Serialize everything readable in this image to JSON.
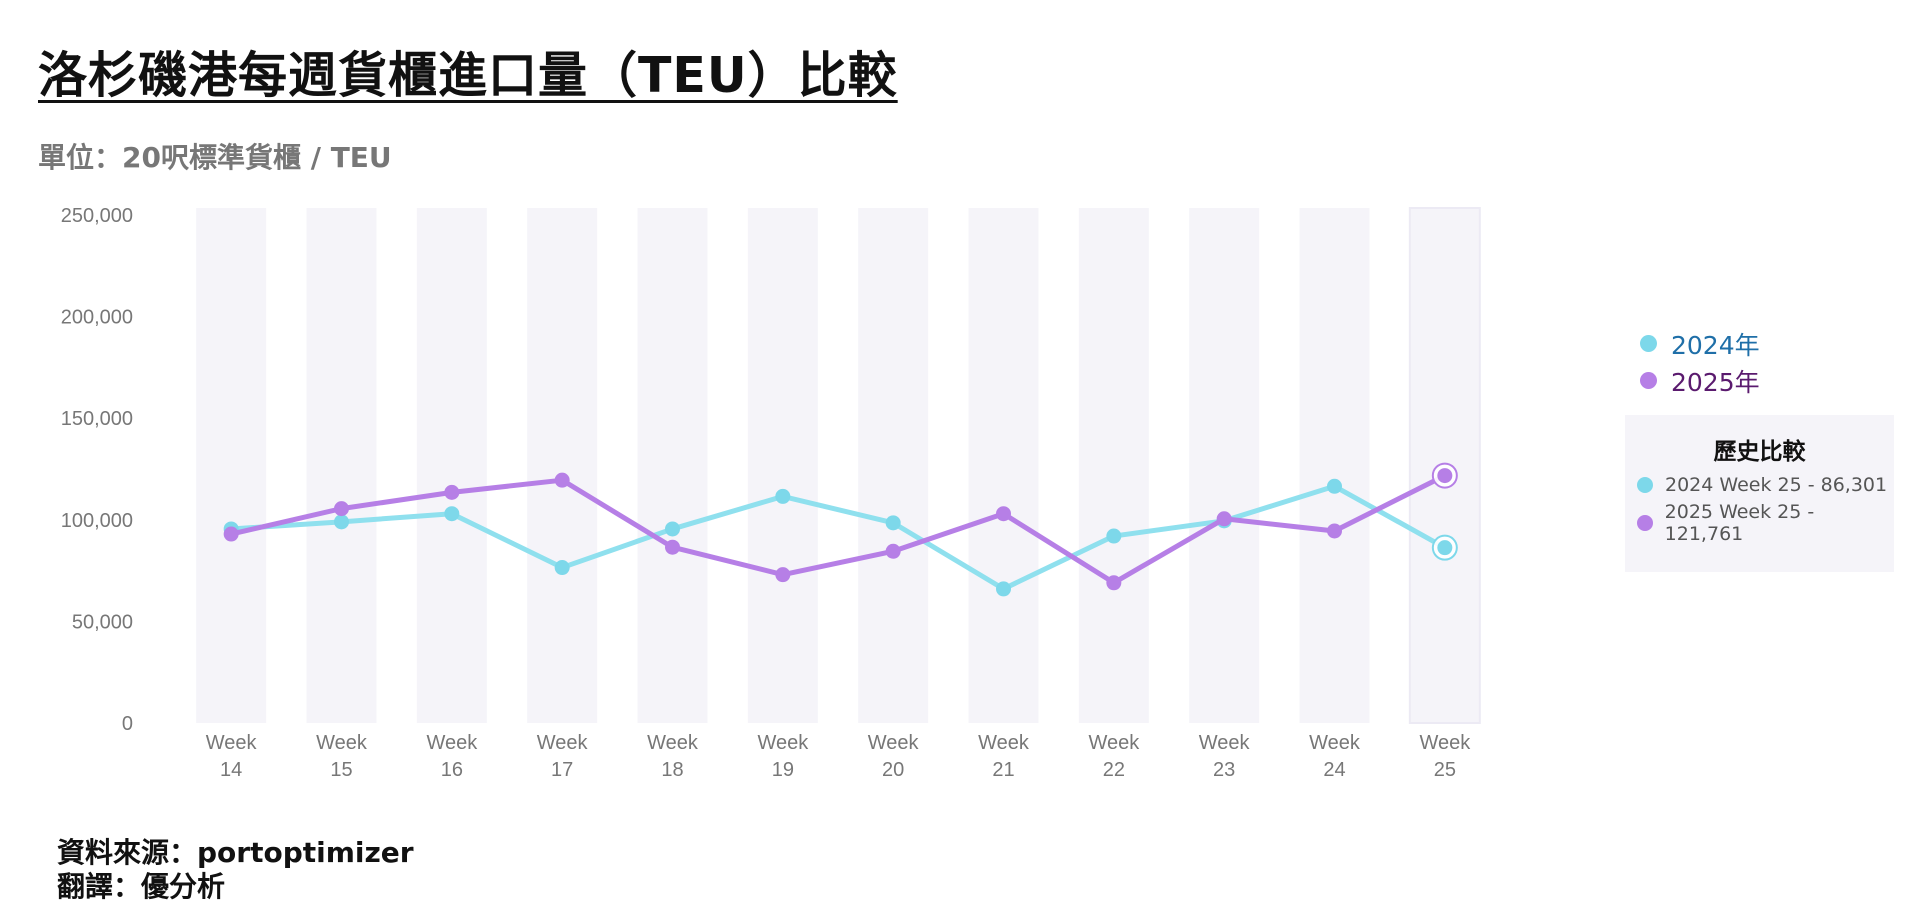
{
  "title": "洛杉磯港每週貨櫃進口量（TEU）比較",
  "subtitle": "單位：20呎標準貨櫃 / TEU",
  "colors": {
    "series_2024": "#8fe0ee",
    "series_2024_dot": "#7dd8ea",
    "series_2025": "#b67fe6",
    "legend_2024_text": "#1f6fa8",
    "legend_2025_text": "#5a1a6e",
    "band": "#f5f4f9"
  },
  "legend": [
    {
      "label": "2024年",
      "color": "#7dd8ea",
      "text_color": "#1f6fa8"
    },
    {
      "label": "2025年",
      "color": "#b67fe6",
      "text_color": "#5a1a6e"
    }
  ],
  "history": {
    "title": "歷史比較",
    "rows": [
      {
        "label": "2024 Week 25 - 86,301",
        "color": "#7dd8ea"
      },
      {
        "label": "2025 Week 25 - 121,761",
        "color": "#b67fe6"
      }
    ]
  },
  "source": {
    "line1": "資料來源：portoptimizer",
    "line2": "翻譯：優分析"
  },
  "chart_data": {
    "type": "line",
    "categories": [
      "Week 14",
      "Week 15",
      "Week 16",
      "Week 17",
      "Week 18",
      "Week 19",
      "Week 20",
      "Week 21",
      "Week 22",
      "Week 23",
      "Week 24",
      "Week 25"
    ],
    "series": [
      {
        "name": "2024年",
        "values": [
          95500,
          99000,
          103000,
          76500,
          95500,
          111500,
          98500,
          66000,
          92000,
          99500,
          116500,
          86301
        ]
      },
      {
        "name": "2025年",
        "values": [
          93000,
          105500,
          113500,
          119500,
          86500,
          73000,
          84500,
          103000,
          69000,
          100500,
          94500,
          121761
        ]
      }
    ],
    "yticks": [
      "0",
      "50,000",
      "100,000",
      "150,000",
      "200,000",
      "250,000"
    ],
    "ylim": [
      0,
      250000
    ],
    "grid": false,
    "legend_position": "right",
    "highlight_category": "Week 25"
  }
}
